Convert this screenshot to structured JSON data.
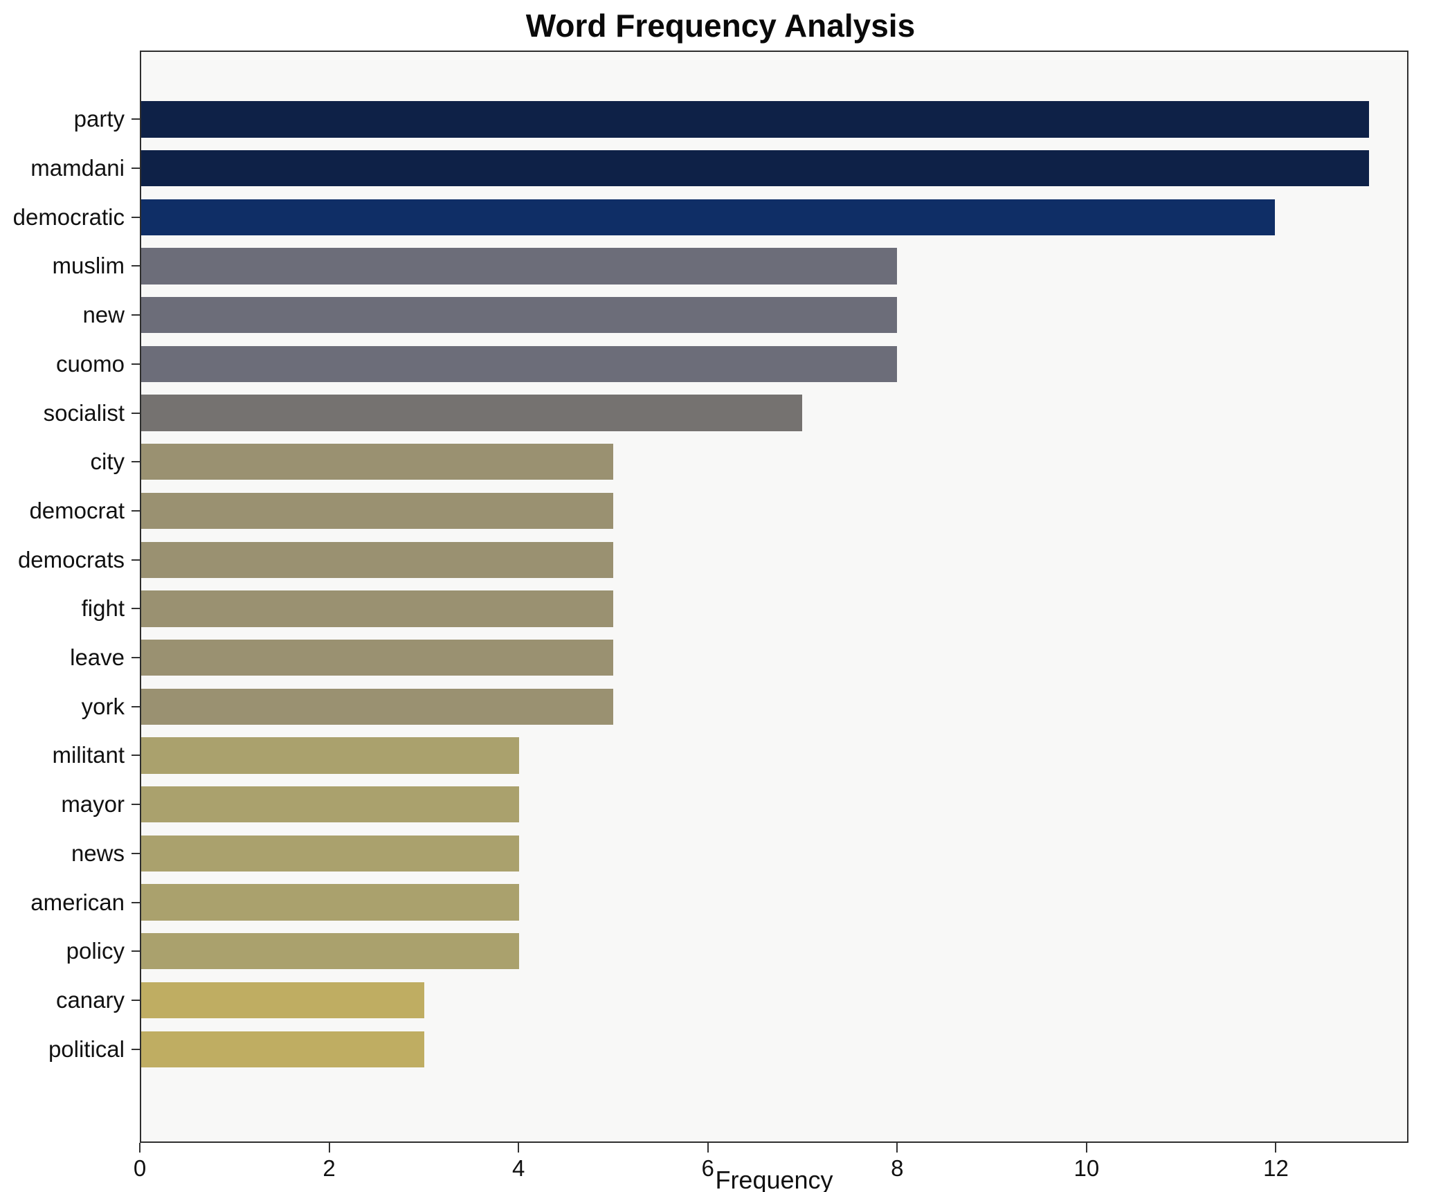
{
  "chart_data": {
    "type": "bar",
    "orientation": "horizontal",
    "title": "Word Frequency Analysis",
    "xlabel": "Frequency",
    "ylabel": "",
    "xlim": [
      0,
      13.4
    ],
    "xticks": [
      0,
      2,
      4,
      6,
      8,
      10,
      12
    ],
    "grid": false,
    "legend": false,
    "plot_background": "#f8f8f7",
    "categories": [
      "party",
      "mamdani",
      "democratic",
      "muslim",
      "new",
      "cuomo",
      "socialist",
      "city",
      "democrat",
      "democrats",
      "fight",
      "leave",
      "york",
      "militant",
      "mayor",
      "news",
      "american",
      "policy",
      "canary",
      "political"
    ],
    "values": [
      13,
      13,
      12,
      8,
      8,
      8,
      7,
      5,
      5,
      5,
      5,
      5,
      5,
      4,
      4,
      4,
      4,
      4,
      3,
      3
    ],
    "colors": [
      "#0e2147",
      "#0e2147",
      "#0f2e66",
      "#6c6d79",
      "#6c6d79",
      "#6c6d79",
      "#757270",
      "#9a9171",
      "#9a9171",
      "#9a9171",
      "#9a9171",
      "#9a9171",
      "#9a9171",
      "#aaa16d",
      "#aaa16d",
      "#aaa16d",
      "#aaa16d",
      "#aaa16d",
      "#bfad62",
      "#bfad62"
    ]
  }
}
